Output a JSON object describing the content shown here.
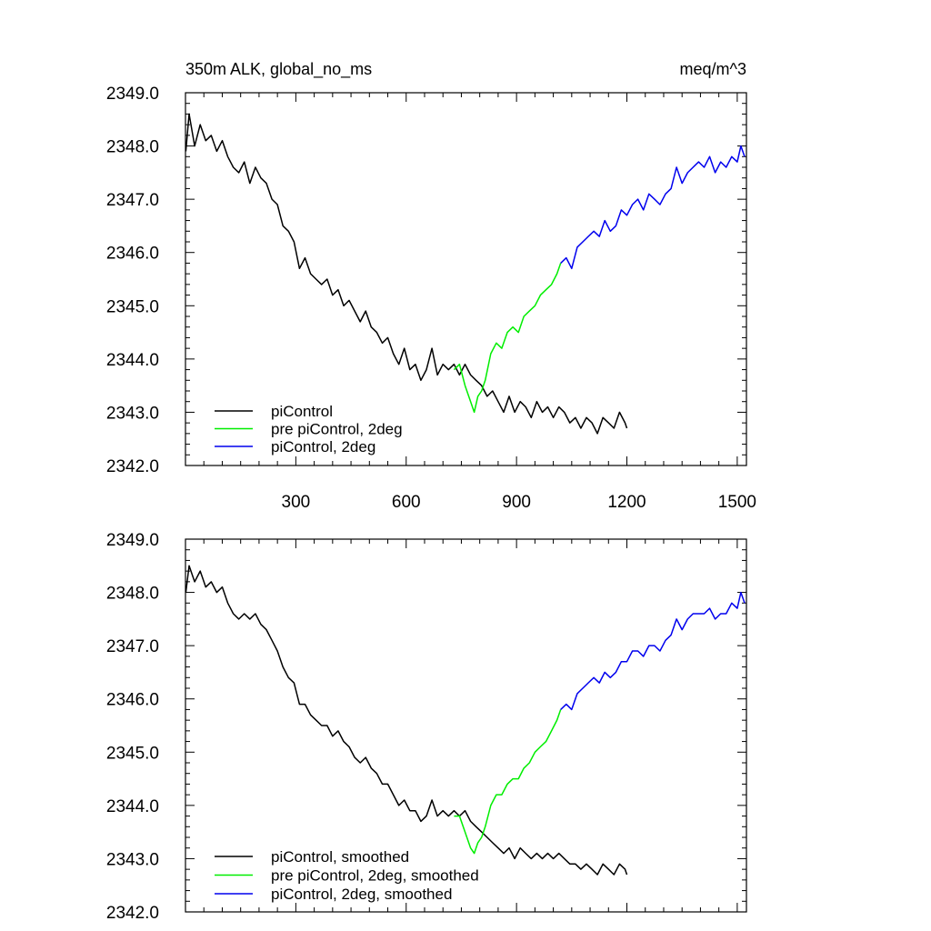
{
  "chart_data": [
    {
      "type": "line",
      "title_left": "350m ALK, global_no_ms",
      "title_right": "meq/m^3",
      "xlabel": "",
      "ylabel": "",
      "xlim": [
        0,
        1525
      ],
      "ylim": [
        2342.0,
        2349.0
      ],
      "x_ticks": [
        300,
        600,
        900,
        1200,
        1500
      ],
      "x_tick_labels": [
        "300",
        "600",
        "900",
        "1200",
        "1500"
      ],
      "y_ticks": [
        2342.0,
        2343.0,
        2344.0,
        2345.0,
        2346.0,
        2347.0,
        2348.0,
        2349.0
      ],
      "y_tick_labels": [
        "2342.0",
        "2343.0",
        "2344.0",
        "2345.0",
        "2346.0",
        "2347.0",
        "2348.0",
        "2349.0"
      ],
      "legend_position": "bottom-left",
      "series": [
        {
          "name": "piControl",
          "color": "#000000",
          "x": [
            1,
            10,
            25,
            40,
            55,
            70,
            85,
            100,
            115,
            130,
            145,
            160,
            175,
            190,
            205,
            220,
            235,
            250,
            265,
            280,
            295,
            310,
            325,
            340,
            355,
            370,
            385,
            400,
            415,
            430,
            445,
            460,
            475,
            490,
            505,
            520,
            535,
            550,
            565,
            580,
            595,
            610,
            625,
            640,
            655,
            670,
            685,
            700,
            715,
            730,
            745,
            760,
            775,
            790,
            805,
            820,
            835,
            850,
            865,
            880,
            895,
            910,
            925,
            940,
            955,
            970,
            985,
            1000,
            1015,
            1030,
            1045,
            1060,
            1075,
            1090,
            1105,
            1120,
            1135,
            1150,
            1165,
            1180,
            1195,
            1200
          ],
          "y": [
            2347.9,
            2348.6,
            2348.0,
            2348.4,
            2348.1,
            2348.2,
            2347.9,
            2348.1,
            2347.8,
            2347.6,
            2347.5,
            2347.7,
            2347.3,
            2347.6,
            2347.4,
            2347.3,
            2347.0,
            2346.9,
            2346.5,
            2346.4,
            2346.2,
            2345.7,
            2345.9,
            2345.6,
            2345.5,
            2345.4,
            2345.5,
            2345.2,
            2345.3,
            2345.0,
            2345.1,
            2344.9,
            2344.7,
            2344.9,
            2344.6,
            2344.5,
            2344.3,
            2344.4,
            2344.1,
            2343.9,
            2344.2,
            2343.8,
            2343.9,
            2343.6,
            2343.8,
            2344.2,
            2343.7,
            2343.9,
            2343.8,
            2343.9,
            2343.7,
            2343.9,
            2343.7,
            2343.6,
            2343.5,
            2343.3,
            2343.4,
            2343.2,
            2343.0,
            2343.3,
            2343.0,
            2343.2,
            2343.1,
            2342.9,
            2343.2,
            2343.0,
            2343.1,
            2342.9,
            2343.1,
            2343.0,
            2342.8,
            2342.9,
            2342.7,
            2342.9,
            2342.8,
            2342.6,
            2342.9,
            2342.8,
            2342.7,
            2343.0,
            2342.8,
            2342.7
          ]
        },
        {
          "name": "pre piControl, 2deg",
          "color": "#00ee00",
          "x": [
            730,
            745,
            760,
            775,
            785,
            795,
            805,
            815,
            830,
            845,
            860,
            875,
            890,
            905,
            920,
            935,
            950,
            965,
            980,
            995,
            1010,
            1020
          ],
          "y": [
            2343.8,
            2343.9,
            2343.5,
            2343.2,
            2343.0,
            2343.3,
            2343.4,
            2343.6,
            2344.1,
            2344.3,
            2344.2,
            2344.5,
            2344.6,
            2344.5,
            2344.8,
            2344.9,
            2345.0,
            2345.2,
            2345.3,
            2345.4,
            2345.6,
            2345.8
          ]
        },
        {
          "name": "piControl, 2deg",
          "color": "#0000ee",
          "x": [
            1020,
            1035,
            1050,
            1065,
            1080,
            1095,
            1110,
            1125,
            1140,
            1155,
            1170,
            1185,
            1200,
            1215,
            1230,
            1245,
            1260,
            1275,
            1290,
            1305,
            1320,
            1335,
            1350,
            1365,
            1380,
            1395,
            1410,
            1425,
            1440,
            1455,
            1470,
            1485,
            1500,
            1510,
            1520
          ],
          "y": [
            2345.8,
            2345.9,
            2345.7,
            2346.1,
            2346.2,
            2346.3,
            2346.4,
            2346.3,
            2346.6,
            2346.4,
            2346.5,
            2346.8,
            2346.7,
            2346.9,
            2347.0,
            2346.8,
            2347.1,
            2347.0,
            2346.9,
            2347.1,
            2347.2,
            2347.6,
            2347.3,
            2347.5,
            2347.6,
            2347.7,
            2347.6,
            2347.8,
            2347.5,
            2347.7,
            2347.6,
            2347.8,
            2347.7,
            2348.0,
            2347.8
          ]
        }
      ]
    },
    {
      "type": "line",
      "title_left": "",
      "title_right": "",
      "xlabel": "",
      "ylabel": "",
      "xlim": [
        0,
        1525
      ],
      "ylim": [
        2342.0,
        2349.0
      ],
      "x_ticks": [
        300,
        600,
        900,
        1200,
        1500
      ],
      "x_tick_labels": [],
      "y_ticks": [
        2342.0,
        2343.0,
        2344.0,
        2345.0,
        2346.0,
        2347.0,
        2348.0,
        2349.0
      ],
      "y_tick_labels": [
        "2342.0",
        "2343.0",
        "2344.0",
        "2345.0",
        "2346.0",
        "2347.0",
        "2348.0",
        "2349.0"
      ],
      "legend_position": "bottom-left",
      "series": [
        {
          "name": "piControl, smoothed",
          "color": "#000000",
          "x": [
            1,
            10,
            25,
            40,
            55,
            70,
            85,
            100,
            115,
            130,
            145,
            160,
            175,
            190,
            205,
            220,
            235,
            250,
            265,
            280,
            295,
            310,
            325,
            340,
            355,
            370,
            385,
            400,
            415,
            430,
            445,
            460,
            475,
            490,
            505,
            520,
            535,
            550,
            565,
            580,
            595,
            610,
            625,
            640,
            655,
            670,
            685,
            700,
            715,
            730,
            745,
            760,
            775,
            790,
            805,
            820,
            835,
            850,
            865,
            880,
            895,
            910,
            925,
            940,
            955,
            970,
            985,
            1000,
            1015,
            1030,
            1045,
            1060,
            1075,
            1090,
            1105,
            1120,
            1135,
            1150,
            1165,
            1180,
            1195,
            1200
          ],
          "y": [
            2348.0,
            2348.5,
            2348.2,
            2348.4,
            2348.1,
            2348.2,
            2348.0,
            2348.1,
            2347.8,
            2347.6,
            2347.5,
            2347.6,
            2347.5,
            2347.6,
            2347.4,
            2347.3,
            2347.1,
            2346.9,
            2346.6,
            2346.4,
            2346.3,
            2345.9,
            2345.9,
            2345.7,
            2345.6,
            2345.5,
            2345.5,
            2345.3,
            2345.4,
            2345.2,
            2345.1,
            2344.9,
            2344.8,
            2344.9,
            2344.7,
            2344.6,
            2344.4,
            2344.4,
            2344.2,
            2344.0,
            2344.1,
            2343.9,
            2343.9,
            2343.7,
            2343.8,
            2344.1,
            2343.8,
            2343.9,
            2343.8,
            2343.9,
            2343.8,
            2343.9,
            2343.7,
            2343.6,
            2343.5,
            2343.4,
            2343.3,
            2343.2,
            2343.1,
            2343.2,
            2343.0,
            2343.2,
            2343.1,
            2343.0,
            2343.1,
            2343.0,
            2343.1,
            2343.0,
            2343.1,
            2343.0,
            2342.9,
            2342.9,
            2342.8,
            2342.9,
            2342.8,
            2342.7,
            2342.9,
            2342.8,
            2342.7,
            2342.9,
            2342.8,
            2342.7
          ]
        },
        {
          "name": "pre piControl, 2deg, smoothed",
          "color": "#00ee00",
          "x": [
            730,
            745,
            760,
            775,
            785,
            795,
            805,
            815,
            830,
            845,
            860,
            875,
            890,
            905,
            920,
            935,
            950,
            965,
            980,
            995,
            1010,
            1020
          ],
          "y": [
            2343.8,
            2343.8,
            2343.5,
            2343.2,
            2343.1,
            2343.3,
            2343.4,
            2343.6,
            2344.0,
            2344.2,
            2344.2,
            2344.4,
            2344.5,
            2344.5,
            2344.7,
            2344.8,
            2345.0,
            2345.1,
            2345.2,
            2345.4,
            2345.6,
            2345.8
          ]
        },
        {
          "name": "piControl, 2deg, smoothed",
          "color": "#0000ee",
          "x": [
            1020,
            1035,
            1050,
            1065,
            1080,
            1095,
            1110,
            1125,
            1140,
            1155,
            1170,
            1185,
            1200,
            1215,
            1230,
            1245,
            1260,
            1275,
            1290,
            1305,
            1320,
            1335,
            1350,
            1365,
            1380,
            1395,
            1410,
            1425,
            1440,
            1455,
            1470,
            1485,
            1500,
            1510,
            1520
          ],
          "y": [
            2345.8,
            2345.9,
            2345.8,
            2346.1,
            2346.2,
            2346.3,
            2346.4,
            2346.3,
            2346.5,
            2346.4,
            2346.5,
            2346.7,
            2346.7,
            2346.9,
            2346.9,
            2346.8,
            2347.0,
            2347.0,
            2346.9,
            2347.1,
            2347.2,
            2347.5,
            2347.3,
            2347.5,
            2347.6,
            2347.6,
            2347.6,
            2347.7,
            2347.5,
            2347.6,
            2347.6,
            2347.8,
            2347.7,
            2348.0,
            2347.8
          ]
        }
      ]
    }
  ]
}
